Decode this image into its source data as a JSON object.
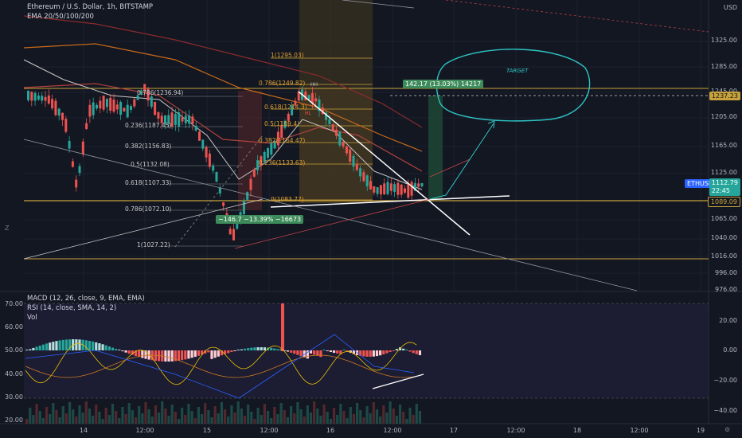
{
  "header": {
    "title": "Ethereum / U.S. Dollar, 1h, BITSTAMP",
    "ema_label": "EMA 20/50/100/200",
    "currency": "USD"
  },
  "colors": {
    "bg": "#131722",
    "up": "#26a69a",
    "down": "#ef5350",
    "gold": "#c8a13a",
    "ema20": "#c9c9c9",
    "ema50": "#b0413e",
    "ema100": "#c76a1a",
    "ema200": "#8a2b2b",
    "target": "#2ec4c4",
    "grid": "#1e2230"
  },
  "price_axis": {
    "ticks": [
      "1325.00",
      "1285.00",
      "1245.00",
      "1205.00",
      "1165.00",
      "1125.00",
      "1065.00",
      "1040.00",
      "1016.00",
      "996.00",
      "976.00"
    ],
    "tags": {
      "level_1237": "1237.23",
      "ethusd_name": "ETHUSD",
      "ethusd_price": "1112.79",
      "ethusd_countdown": "22:45",
      "level_1089": "1089.09"
    }
  },
  "fib": {
    "set_a": [
      "0.786(1236.94)",
      "0.618(1214.3)",
      "0.236(1187.45)",
      "0.382(1156.83)",
      "0.5(1132.08)",
      "0.618(1107.33)",
      "0.786(1072.10)",
      "1(1027.22)"
    ],
    "set_b": [
      "1(1295.03)",
      "0.786(1249.82)",
      "0.618(1214.3)",
      "0.5(1189.4)",
      "0.382(1164.47)",
      "0.236(1133.63)",
      "0(1083.77)"
    ]
  },
  "annotations": {
    "target": "TARGET",
    "long_box": "142.17 (13.03%) 14217",
    "short_box": "−146.7 −13.39% −16673",
    "hh": "HH",
    "hl": "HL"
  },
  "indicators": {
    "macd_label": "MACD (12, 26, close, 9, EMA, EMA)",
    "rsi_label": "RSI (14, close, SMA, 14, 2)",
    "vol_label": "Vol",
    "rsi_ticks": [
      "70.00",
      "60.00",
      "50.00",
      "40.00",
      "30.00",
      "20.00"
    ],
    "macd_ticks": [
      "20.00",
      "0.00",
      "−20.00",
      "−40.00"
    ]
  },
  "time_axis": {
    "ticks": [
      "14",
      "12:00",
      "15",
      "12:00",
      "16",
      "12:00",
      "17",
      "12:00",
      "18",
      "12:00",
      "19"
    ]
  },
  "misc": {
    "z_label": "Z",
    "gear": "⚙"
  }
}
